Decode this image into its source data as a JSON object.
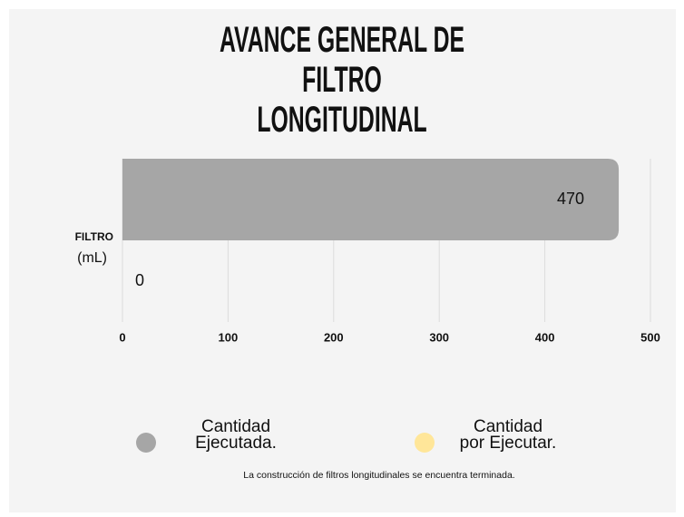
{
  "chart_data": {
    "type": "hbar",
    "title": "AVANCE GENERAL DE FILTRO\nLONGITUDINAL",
    "categories": [
      "FILTRO"
    ],
    "category_unit": "(mL)",
    "series": [
      {
        "name": "Cantidad\nEjecutada.",
        "color": "#a6a6a6",
        "values": [
          470
        ]
      },
      {
        "name": "Cantidad\npor Ejecutar.",
        "color": "#ffe699",
        "values": [
          0
        ]
      }
    ],
    "xlim": [
      0,
      500
    ],
    "xticks": [
      0,
      100,
      200,
      300,
      400,
      500
    ],
    "grid": true,
    "legend": "bottom",
    "note": "La construcción de filtros longitudinales se encuentra terminada."
  }
}
